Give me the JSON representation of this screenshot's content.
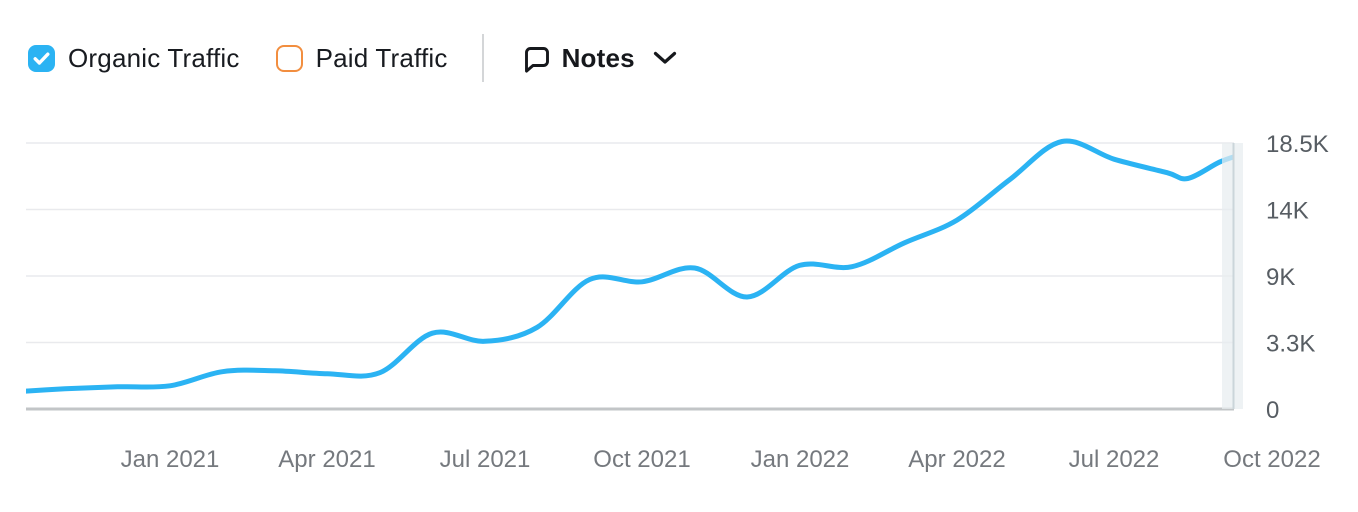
{
  "legend": {
    "organic_traffic": {
      "label": "Organic Traffic",
      "checked": true,
      "checkbox_color": "#2bb3f3"
    },
    "paid_traffic": {
      "label": "Paid Traffic",
      "checked": false,
      "checkbox_color": "#f28e3f"
    },
    "notes": {
      "label": "Notes",
      "icon": "speech-bubble-icon",
      "expand_icon": "chevron-down-icon"
    }
  },
  "chart_data": {
    "type": "line",
    "title": "",
    "x_tick_labels": [
      "Jan 2021",
      "Apr 2021",
      "Jul 2021",
      "Oct 2021",
      "Jan 2022",
      "Apr 2022",
      "Jul 2022",
      "Oct 2022"
    ],
    "x_range": [
      "Oct 2020",
      "Oct 2022"
    ],
    "y_axis": {
      "side": "right",
      "tick_labels": [
        "18.5K",
        "14K",
        "9K",
        "3.3K",
        "0"
      ],
      "tick_values": [
        18500,
        14000,
        9000,
        3300,
        0
      ],
      "range": [
        0,
        18500
      ]
    },
    "grid": true,
    "legend_position": "top",
    "highlight_current_period": true,
    "paid_series_visible": false,
    "series": [
      {
        "name": "Organic Traffic",
        "color": "#2bb3f3",
        "months": [
          "Oct 2020",
          "Nov 2020",
          "Dec 2020",
          "Jan 2021",
          "Feb 2021",
          "Mar 2021",
          "Apr 2021",
          "May 2021",
          "Jun 2021",
          "Jul 2021",
          "Aug 2021",
          "Sep 2021",
          "Oct 2021",
          "Nov 2021",
          "Dec 2021",
          "Jan 2022",
          "Feb 2022",
          "Mar 2022",
          "Apr 2022",
          "May 2022",
          "Jun 2022",
          "Jul 2022",
          "Aug 2022",
          "Sep 2022"
        ],
        "values": [
          850,
          1000,
          1100,
          1150,
          1850,
          1900,
          1750,
          1800,
          4100,
          3400,
          4600,
          8700,
          8500,
          9600,
          7200,
          9800,
          9700,
          11500,
          13200,
          16000,
          18600,
          17400,
          16500,
          17200
        ],
        "shape_anchors_extra": [
          [
            22.4,
            16100
          ],
          [
            23.35,
            17650
          ]
        ]
      }
    ]
  },
  "colors": {
    "gridline": "#e9eaed",
    "zero_line": "#c2c5c7",
    "band": "#e8edf0",
    "band_border": "#cbd5da",
    "legend_text": "#181b20",
    "divider": "#d4d6d8",
    "icon": "#16181c",
    "y_label": "#575d63",
    "x_label": "#75797e"
  }
}
